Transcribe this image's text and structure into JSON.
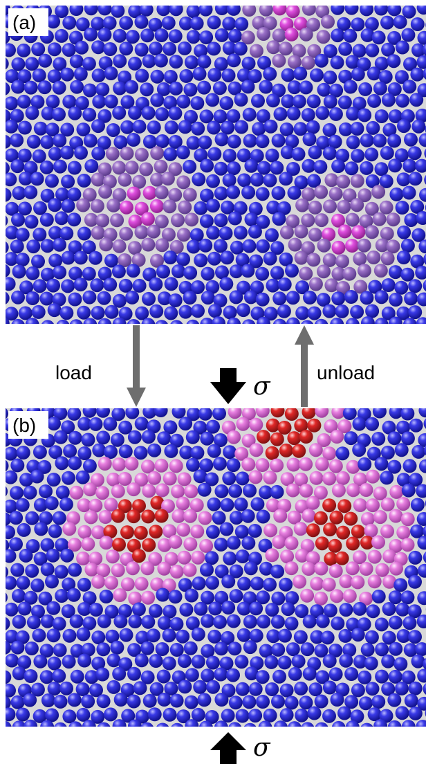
{
  "panels": [
    {
      "label": "(a)"
    },
    {
      "label": "(b)"
    }
  ],
  "arrows": {
    "load": "load",
    "unload": "unload",
    "stress_top": "σ",
    "stress_bottom": "σ"
  }
}
